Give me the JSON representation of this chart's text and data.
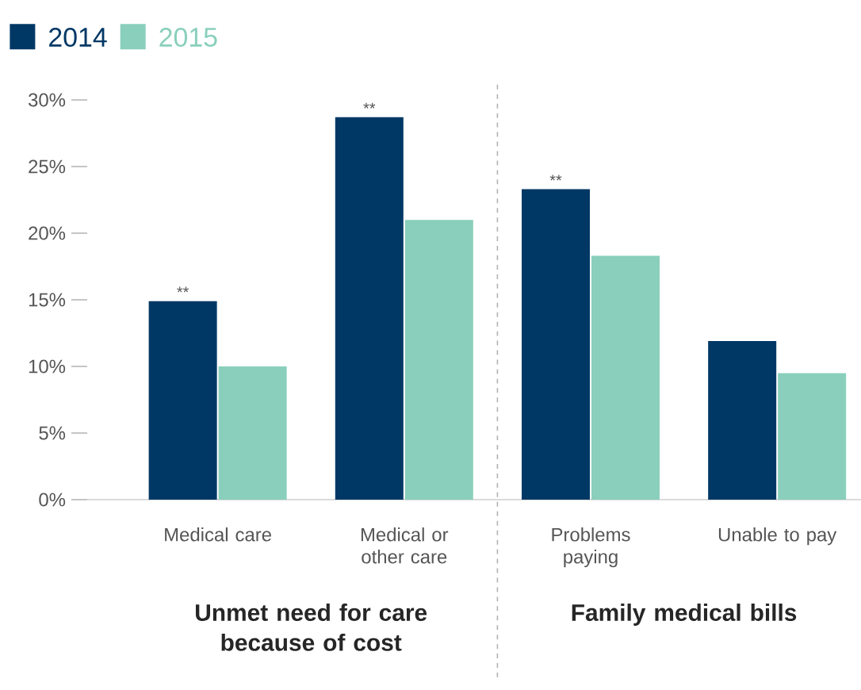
{
  "chart_data": {
    "type": "bar",
    "categories": [
      "Medical care",
      "Medical or other care",
      "Problems paying",
      "Unable to pay"
    ],
    "series": [
      {
        "name": "2014",
        "color": "#003865",
        "values": [
          14.9,
          28.7,
          23.3,
          11.9
        ]
      },
      {
        "name": "2015",
        "color": "#89cfbc",
        "values": [
          10.0,
          21.0,
          18.3,
          9.5
        ]
      }
    ],
    "ylim": [
      0,
      30
    ],
    "yticks": [
      {
        "value": 0,
        "label": "0%"
      },
      {
        "value": 5,
        "label": "5%"
      },
      {
        "value": 10,
        "label": "10%"
      },
      {
        "value": 15,
        "label": "15%"
      },
      {
        "value": 20,
        "label": "20%"
      },
      {
        "value": 25,
        "label": "25%"
      },
      {
        "value": 30,
        "label": "30%"
      }
    ],
    "annotations": [
      {
        "text": "**",
        "x": "Medical care",
        "y": 14.9
      },
      {
        "text": "**",
        "x": "Medical or other care",
        "y": 28.7
      },
      {
        "text": "**",
        "x": "Problems paying",
        "y": 23.3
      },
      "Unmet need for care because of cost",
      "Family medical bills"
    ],
    "legend": "top left",
    "grid": false
  }
}
